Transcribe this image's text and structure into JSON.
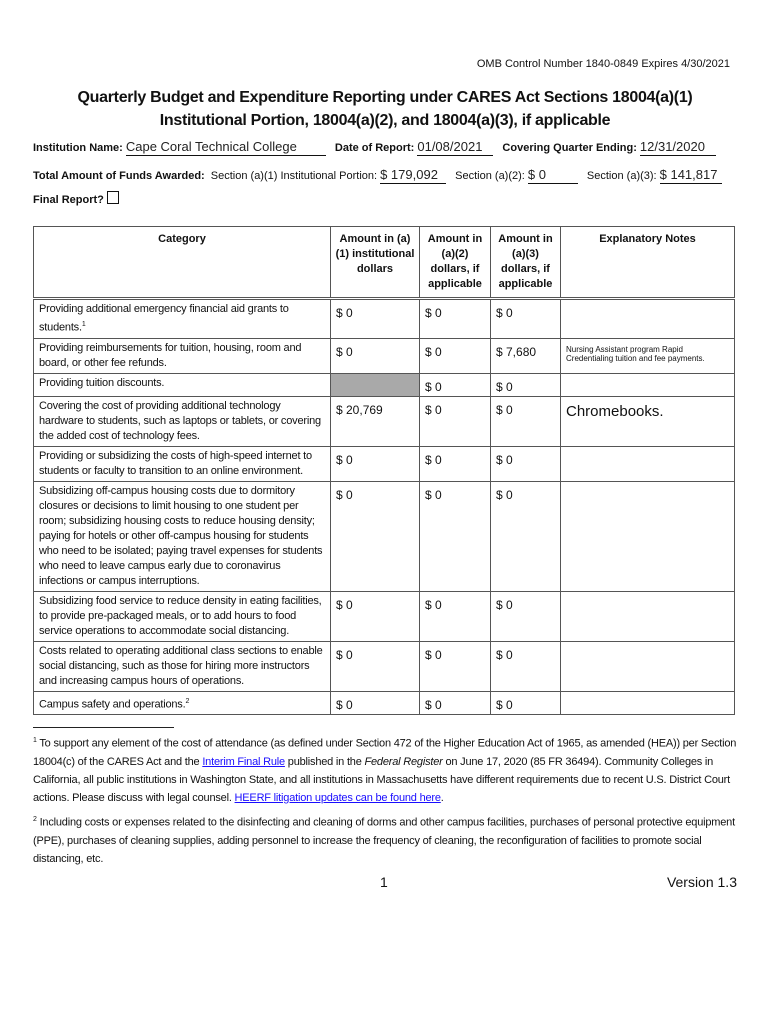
{
  "header": {
    "omb": "OMB Control Number 1840-0849 Expires 4/30/2021",
    "title": "Quarterly Budget and Expenditure Reporting under CARES Act Sections 18004(a)(1) Institutional Portion, 18004(a)(2), and 18004(a)(3), if applicable"
  },
  "fields": {
    "institution_label": "Institution Name:",
    "institution": "Cape Coral Technical College",
    "date_label": "Date of Report:",
    "date": "01/08/2021",
    "quarter_label": "Covering Quarter Ending:",
    "quarter": "12/31/2020",
    "total_label": "Total Amount of Funds Awarded:",
    "a1_label": "Section (a)(1) Institutional Portion:",
    "a1": "$ 179,092",
    "a2_label": "Section (a)(2):",
    "a2": "$ 0",
    "a3_label": "Section (a)(3):",
    "a3": "$ 141,817",
    "final_label": "Final Report?",
    "final_checked": false
  },
  "table": {
    "headers": [
      "Category",
      "Amount in (a)(1) institutional dollars",
      "Amount in (a)(2) dollars, if applicable",
      "Amount in (a)(3) dollars, if applicable",
      "Explanatory Notes"
    ],
    "rows": [
      {
        "category": "Providing additional emergency financial aid grants to students.",
        "sup": "1",
        "a1": "$ 0",
        "a2": "$ 0",
        "a3": "$ 0",
        "notes": ""
      },
      {
        "category": "Providing reimbursements for tuition, housing, room and board, or other fee refunds.",
        "a1": "$ 0",
        "a2": "$ 0",
        "a3": "$ 7,680",
        "notes": "Nursing Assistant program Rapid Credentialing tuition and fee payments."
      },
      {
        "category": "Providing tuition discounts.",
        "a1": "",
        "a2": "$ 0",
        "a3": "$ 0",
        "notes": ""
      },
      {
        "category": "Covering the cost of providing additional technology hardware to students, such as laptops or tablets, or covering the added cost of technology fees.",
        "a1": "$ 20,769",
        "a2": "$ 0",
        "a3": "$ 0",
        "notes": "Chromebooks."
      },
      {
        "category": "Providing or subsidizing the costs of high-speed internet to students or faculty to transition to an online environment.",
        "a1": "$ 0",
        "a2": "$ 0",
        "a3": "$ 0",
        "notes": ""
      },
      {
        "category": "Subsidizing off-campus housing costs due to dormitory closures or decisions to limit housing to one student per room; subsidizing housing costs to reduce housing density; paying for hotels or other off-campus housing for students who need to be isolated; paying travel expenses for students who need to leave campus early due to coronavirus infections or campus interruptions.",
        "a1": "$ 0",
        "a2": "$ 0",
        "a3": "$ 0",
        "notes": ""
      },
      {
        "category": "Subsidizing food service to reduce density in eating facilities, to provide pre-packaged meals, or to add hours to food service operations to accommodate social distancing.",
        "a1": "$ 0",
        "a2": "$ 0",
        "a3": "$ 0",
        "notes": ""
      },
      {
        "category": "Costs related to operating additional class sections to enable social distancing, such as those for hiring more instructors and increasing campus hours of operations.",
        "a1": "$ 0",
        "a2": "$ 0",
        "a3": "$ 0",
        "notes": ""
      },
      {
        "category": "Campus safety and operations.",
        "sup": "2",
        "a1": "$ 0",
        "a2": "$ 0",
        "a3": "$ 0",
        "notes": ""
      }
    ]
  },
  "footnotes": {
    "fn1_a": "To support any element of the cost of attendance (as defined under Section 472 of the Higher Education Act of 1965, as amended (HEA)) per Section 18004(c) of the CARES Act and the ",
    "fn1_link1": "Interim Final Rule",
    "fn1_b": " published in the ",
    "fn1_italic": "Federal Register",
    "fn1_c": " on June 17, 2020 (85 FR 36494). Community Colleges in California, all public institutions in Washington State, and all institutions in Massachusetts have different requirements due to recent U.S. District Court actions. Please discuss with legal counsel. ",
    "fn1_link2": "HEERF litigation updates can be found here",
    "fn2": "Including costs or expenses related to the disinfecting and cleaning of dorms and other campus facilities, purchases of personal protective equipment (PPE), purchases of cleaning supplies, adding personnel to increase the frequency of cleaning, the reconfiguration of facilities to promote social distancing, etc."
  },
  "footer": {
    "page": "1",
    "version": "Version 1.3"
  }
}
